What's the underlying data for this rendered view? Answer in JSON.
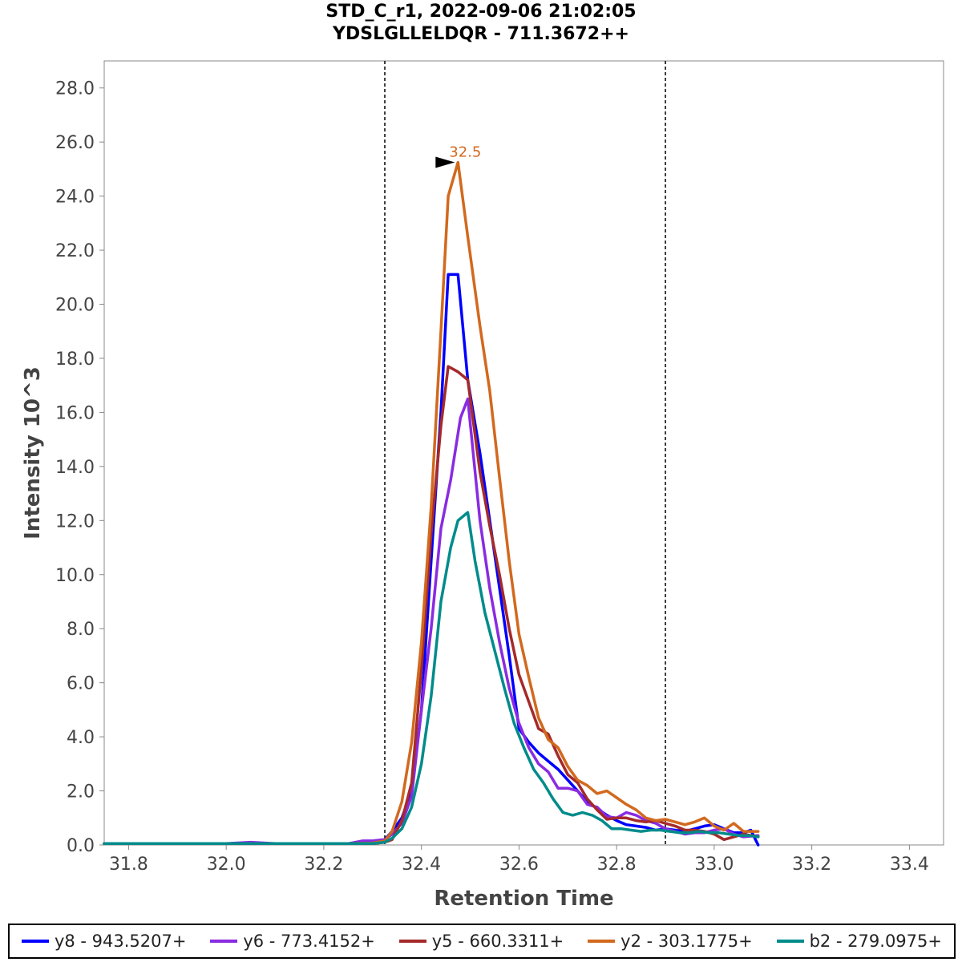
{
  "title": [
    "STD_C_r1, 2022-09-06 21:02:05",
    "YDSLGLLELDQR - 711.3672++"
  ],
  "chart_data": {
    "type": "line",
    "xlabel": "Retention Time",
    "ylabel": "Intensity 10^3",
    "xlim": [
      31.75,
      33.47
    ],
    "ylim": [
      0,
      29.0
    ],
    "xticks": [
      "31.8",
      "32.0",
      "32.2",
      "32.4",
      "32.6",
      "32.8",
      "33.0",
      "33.2",
      "33.4"
    ],
    "yticks": [
      "0.0",
      "2.0",
      "4.0",
      "6.0",
      "8.0",
      "10.0",
      "12.0",
      "14.0",
      "16.0",
      "18.0",
      "20.0",
      "22.0",
      "24.0",
      "26.0",
      "28.0"
    ],
    "grid": false,
    "legend_position": "bottom",
    "integration_boundaries": [
      32.325,
      32.9
    ],
    "peak_annotation": {
      "label": "32.5",
      "x": 32.475,
      "y": 25.25,
      "color": "#D2691E"
    },
    "series": [
      {
        "name": "y8 - 943.5207+",
        "color": "#0000FF",
        "x": [
          31.75,
          32.0,
          32.25,
          32.3,
          32.325,
          32.34,
          32.36,
          32.38,
          32.4,
          32.42,
          32.44,
          32.455,
          32.475,
          32.495,
          32.52,
          32.54,
          32.56,
          32.58,
          32.6,
          32.62,
          32.64,
          32.66,
          32.68,
          32.7,
          32.72,
          32.74,
          32.76,
          32.78,
          32.8,
          32.82,
          32.84,
          32.86,
          32.88,
          32.9,
          32.92,
          32.94,
          32.96,
          32.98,
          33.0,
          33.02,
          33.04,
          33.06,
          33.075,
          33.09
        ],
        "y": [
          0.05,
          0.05,
          0.05,
          0.07,
          0.2,
          0.5,
          1.0,
          2.0,
          5.0,
          10.5,
          16.0,
          21.1,
          21.1,
          17.2,
          14.5,
          12.0,
          9.5,
          7.0,
          4.3,
          3.8,
          3.4,
          3.1,
          2.8,
          2.4,
          2.0,
          1.6,
          1.35,
          1.1,
          0.9,
          0.75,
          0.7,
          0.65,
          0.55,
          0.6,
          0.55,
          0.5,
          0.6,
          0.7,
          0.75,
          0.6,
          0.45,
          0.45,
          0.55,
          0.0
        ]
      },
      {
        "name": "y6 - 773.4152+",
        "color": "#8A2BE2",
        "x": [
          31.75,
          32.0,
          32.05,
          32.1,
          32.25,
          32.28,
          32.3,
          32.325,
          32.34,
          32.36,
          32.38,
          32.4,
          32.42,
          32.44,
          32.46,
          32.48,
          32.495,
          32.52,
          32.54,
          32.56,
          32.58,
          32.6,
          32.62,
          32.64,
          32.66,
          32.68,
          32.7,
          32.72,
          32.74,
          32.76,
          32.78,
          32.8,
          32.82,
          32.84,
          32.86,
          32.88,
          32.9,
          32.92,
          32.94,
          32.96,
          32.98,
          33.0,
          33.02,
          33.04,
          33.06,
          33.09
        ],
        "y": [
          0.05,
          0.05,
          0.1,
          0.05,
          0.05,
          0.15,
          0.15,
          0.2,
          0.4,
          0.8,
          1.8,
          5.0,
          8.0,
          11.7,
          13.5,
          15.8,
          16.5,
          12.0,
          9.5,
          7.5,
          5.8,
          4.5,
          3.6,
          3.0,
          2.7,
          2.1,
          2.1,
          2.0,
          1.5,
          1.4,
          1.05,
          1.0,
          1.2,
          1.1,
          0.9,
          0.8,
          0.6,
          0.5,
          0.4,
          0.45,
          0.45,
          0.55,
          0.6,
          0.4,
          0.3,
          0.35
        ]
      },
      {
        "name": "y5 - 660.3311+",
        "color": "#A52A2A",
        "x": [
          31.75,
          32.0,
          32.25,
          32.3,
          32.325,
          32.34,
          32.36,
          32.38,
          32.4,
          32.42,
          32.44,
          32.455,
          32.475,
          32.495,
          32.52,
          32.54,
          32.56,
          32.58,
          32.6,
          32.62,
          32.64,
          32.66,
          32.68,
          32.7,
          32.72,
          32.74,
          32.76,
          32.78,
          32.8,
          32.82,
          32.84,
          32.86,
          32.88,
          32.9,
          32.92,
          32.94,
          32.96,
          32.98,
          33.0,
          33.02,
          33.04,
          33.06,
          33.09
        ],
        "y": [
          0.05,
          0.05,
          0.05,
          0.05,
          0.1,
          0.2,
          0.9,
          2.3,
          6.5,
          11.5,
          15.5,
          17.7,
          17.5,
          17.2,
          13.8,
          11.8,
          10.0,
          8.0,
          6.3,
          5.3,
          4.3,
          4.1,
          3.3,
          2.6,
          2.3,
          1.7,
          1.3,
          0.95,
          1.0,
          1.0,
          0.9,
          0.85,
          0.9,
          0.8,
          0.7,
          0.55,
          0.55,
          0.5,
          0.4,
          0.2,
          0.3,
          0.4,
          0.3
        ]
      },
      {
        "name": "y2 - 303.1775+",
        "color": "#D2691E",
        "x": [
          31.75,
          32.0,
          32.25,
          32.3,
          32.325,
          32.34,
          32.36,
          32.38,
          32.4,
          32.42,
          32.44,
          32.455,
          32.475,
          32.495,
          32.52,
          32.54,
          32.56,
          32.58,
          32.6,
          32.62,
          32.64,
          32.66,
          32.68,
          32.7,
          32.72,
          32.74,
          32.76,
          32.78,
          32.8,
          32.82,
          32.84,
          32.86,
          32.88,
          32.9,
          32.92,
          32.94,
          32.96,
          32.98,
          33.0,
          33.02,
          33.04,
          33.06,
          33.09
        ],
        "y": [
          0.05,
          0.05,
          0.05,
          0.07,
          0.15,
          0.5,
          1.6,
          3.8,
          7.5,
          12.5,
          19.0,
          24.0,
          25.25,
          22.5,
          19.2,
          16.8,
          13.6,
          10.5,
          7.8,
          6.2,
          4.7,
          3.9,
          3.6,
          2.9,
          2.4,
          2.2,
          1.9,
          2.0,
          1.75,
          1.5,
          1.3,
          1.0,
          0.9,
          0.95,
          0.85,
          0.75,
          0.85,
          1.0,
          0.7,
          0.55,
          0.8,
          0.5,
          0.5
        ]
      },
      {
        "name": "b2 - 279.0975+",
        "color": "#008B8B",
        "x": [
          31.75,
          32.0,
          32.25,
          32.3,
          32.325,
          32.34,
          32.36,
          32.38,
          32.4,
          32.42,
          32.44,
          32.46,
          32.475,
          32.495,
          32.51,
          32.53,
          32.55,
          32.57,
          32.59,
          32.61,
          32.63,
          32.65,
          32.67,
          32.69,
          32.71,
          32.73,
          32.75,
          32.77,
          32.79,
          32.81,
          32.83,
          32.85,
          32.87,
          32.89,
          32.91,
          32.93,
          32.95,
          32.97,
          32.99,
          33.01,
          33.03,
          33.05,
          33.07,
          33.09
        ],
        "y": [
          0.05,
          0.05,
          0.05,
          0.05,
          0.1,
          0.25,
          0.6,
          1.4,
          3.0,
          5.5,
          9.0,
          11.0,
          12.0,
          12.3,
          10.5,
          8.6,
          7.2,
          5.8,
          4.5,
          3.6,
          2.8,
          2.3,
          1.7,
          1.2,
          1.1,
          1.2,
          1.1,
          0.9,
          0.6,
          0.6,
          0.55,
          0.5,
          0.55,
          0.55,
          0.5,
          0.45,
          0.45,
          0.5,
          0.45,
          0.45,
          0.4,
          0.35,
          0.35,
          0.3
        ]
      }
    ]
  }
}
